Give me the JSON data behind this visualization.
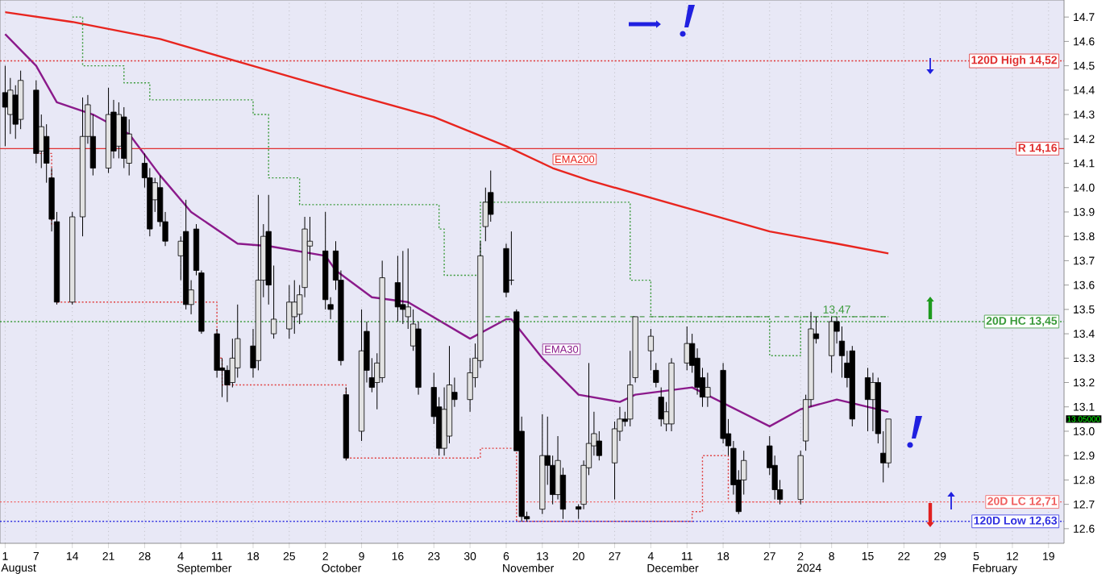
{
  "chart_data": {
    "type": "candlestick",
    "x": [
      "2023-08-01",
      "2023-08-02",
      "2023-08-03",
      "2023-08-04",
      "2023-08-07",
      "2023-08-08",
      "2023-08-09",
      "2023-08-10",
      "2023-08-11",
      "2023-08-14",
      "2023-08-16",
      "2023-08-17",
      "2023-08-18",
      "2023-08-21",
      "2023-08-22",
      "2023-08-23",
      "2023-08-24",
      "2023-08-25",
      "2023-08-28",
      "2023-08-29",
      "2023-08-30",
      "2023-08-31",
      "2023-09-01",
      "2023-09-04",
      "2023-09-05",
      "2023-09-06",
      "2023-09-07",
      "2023-09-08",
      "2023-09-11",
      "2023-09-12",
      "2023-09-13",
      "2023-09-14",
      "2023-09-15",
      "2023-09-18",
      "2023-09-19",
      "2023-09-20",
      "2023-09-21",
      "2023-09-22",
      "2023-09-25",
      "2023-09-26",
      "2023-09-27",
      "2023-09-28",
      "2023-09-29",
      "2023-10-02",
      "2023-10-03",
      "2023-10-04",
      "2023-10-05",
      "2023-10-06",
      "2023-10-09",
      "2023-10-10",
      "2023-10-11",
      "2023-10-12",
      "2023-10-13",
      "2023-10-16",
      "2023-10-17",
      "2023-10-18",
      "2023-10-19",
      "2023-10-20",
      "2023-10-23",
      "2023-10-24",
      "2023-10-25",
      "2023-10-26",
      "2023-10-27",
      "2023-10-30",
      "2023-10-31",
      "2023-11-01",
      "2023-11-02",
      "2023-11-03",
      "2023-11-06",
      "2023-11-07",
      "2023-11-08",
      "2023-11-09",
      "2023-11-10",
      "2023-11-13",
      "2023-11-14",
      "2023-11-15",
      "2023-11-16",
      "2023-11-17",
      "2023-11-20",
      "2023-11-21",
      "2023-11-22",
      "2023-11-23",
      "2023-11-24",
      "2023-11-27",
      "2023-11-28",
      "2023-11-29",
      "2023-11-30",
      "2023-12-01",
      "2023-12-04",
      "2023-12-05",
      "2023-12-06",
      "2023-12-07",
      "2023-12-08",
      "2023-12-11",
      "2023-12-12",
      "2023-12-13",
      "2023-12-14",
      "2023-12-15",
      "2023-12-18",
      "2023-12-19",
      "2023-12-20",
      "2023-12-21",
      "2023-12-22",
      "2023-12-27",
      "2023-12-28",
      "2023-12-29",
      "2024-01-02",
      "2024-01-03",
      "2024-01-04",
      "2024-01-05",
      "2024-01-08",
      "2024-01-09",
      "2024-01-10",
      "2024-01-11",
      "2024-01-12",
      "2024-01-15",
      "2024-01-16",
      "2024-01-17",
      "2024-01-18",
      "2024-01-19"
    ],
    "ohlc": [
      [
        14.39,
        14.5,
        14.17,
        14.33
      ],
      [
        14.3,
        14.45,
        14.22,
        14.4
      ],
      [
        14.38,
        14.42,
        14.2,
        14.26
      ],
      [
        14.28,
        14.48,
        14.24,
        14.44
      ],
      [
        14.4,
        14.44,
        14.1,
        14.14
      ],
      [
        14.15,
        14.3,
        14.08,
        14.25
      ],
      [
        14.21,
        14.26,
        14.02,
        14.1
      ],
      [
        14.04,
        14.08,
        13.82,
        13.87
      ],
      [
        13.86,
        13.9,
        13.52,
        13.53
      ],
      [
        13.53,
        13.9,
        13.52,
        13.88
      ],
      [
        13.88,
        14.37,
        13.8,
        14.21
      ],
      [
        14.21,
        14.38,
        14.18,
        14.34
      ],
      [
        14.21,
        14.3,
        14.05,
        14.08
      ],
      [
        14.08,
        14.41,
        14.06,
        14.3
      ],
      [
        14.31,
        14.36,
        14.12,
        14.15
      ],
      [
        14.17,
        14.35,
        14.12,
        14.3
      ],
      [
        14.29,
        14.33,
        14.08,
        14.12
      ],
      [
        14.1,
        14.28,
        14.05,
        14.22
      ],
      [
        14.1,
        14.14,
        14.0,
        14.04
      ],
      [
        14.04,
        14.08,
        13.8,
        13.83
      ],
      [
        13.95,
        14.04,
        13.9,
        14.02
      ],
      [
        14.0,
        14.05,
        13.84,
        13.86
      ],
      [
        13.86,
        13.9,
        13.76,
        13.78
      ],
      [
        13.72,
        13.8,
        13.62,
        13.78
      ],
      [
        13.82,
        13.95,
        13.5,
        13.52
      ],
      [
        13.52,
        13.62,
        13.48,
        13.58
      ],
      [
        13.83,
        13.85,
        13.64,
        13.66
      ],
      [
        13.65,
        13.66,
        13.4,
        13.41
      ],
      [
        13.4,
        13.42,
        13.22,
        13.25
      ],
      [
        13.26,
        13.3,
        13.14,
        13.25
      ],
      [
        13.25,
        13.27,
        13.12,
        13.19
      ],
      [
        13.2,
        13.38,
        13.18,
        13.3
      ],
      [
        13.26,
        13.52,
        13.22,
        13.38
      ],
      [
        13.35,
        13.42,
        13.22,
        13.26
      ],
      [
        13.29,
        13.97,
        13.25,
        13.62
      ],
      [
        13.62,
        13.85,
        13.55,
        13.8
      ],
      [
        13.82,
        13.97,
        13.52,
        13.6
      ],
      [
        13.4,
        13.68,
        13.38,
        13.46
      ],
      [
        13.42,
        13.6,
        13.38,
        13.53
      ],
      [
        13.47,
        13.62,
        13.4,
        13.53
      ],
      [
        13.48,
        13.6,
        13.44,
        13.56
      ],
      [
        13.59,
        13.88,
        13.55,
        13.83
      ],
      [
        13.76,
        13.88,
        13.7,
        13.78
      ],
      [
        13.74,
        13.9,
        13.5,
        13.54
      ],
      [
        13.52,
        13.55,
        13.46,
        13.5
      ],
      [
        13.74,
        13.78,
        13.58,
        13.62
      ],
      [
        13.62,
        13.66,
        13.27,
        13.29
      ],
      [
        13.15,
        13.18,
        12.88,
        12.89
      ],
      [
        13.0,
        13.5,
        12.96,
        13.33
      ],
      [
        13.41,
        13.45,
        13.2,
        13.25
      ],
      [
        13.22,
        13.3,
        13.16,
        13.18
      ],
      [
        13.2,
        13.32,
        13.09,
        13.28
      ],
      [
        13.22,
        13.7,
        13.2,
        13.63
      ],
      [
        13.61,
        13.72,
        13.45,
        13.51
      ],
      [
        13.52,
        13.74,
        13.44,
        13.5
      ],
      [
        13.47,
        13.75,
        13.42,
        13.51
      ],
      [
        13.35,
        13.5,
        13.33,
        13.44
      ],
      [
        13.42,
        13.45,
        13.15,
        13.18
      ],
      [
        13.18,
        13.24,
        13.03,
        13.06
      ],
      [
        13.1,
        13.14,
        12.9,
        12.93
      ],
      [
        12.93,
        13.18,
        12.9,
        13.09
      ],
      [
        12.98,
        13.35,
        12.95,
        13.19
      ],
      [
        13.16,
        13.22,
        13.1,
        13.13
      ],
      [
        13.13,
        13.3,
        13.08,
        13.24
      ],
      [
        13.22,
        13.36,
        13.18,
        13.3
      ],
      [
        13.29,
        13.78,
        13.26,
        13.72
      ],
      [
        13.84,
        14.0,
        13.78,
        13.94
      ],
      [
        13.98,
        14.07,
        13.86,
        13.89
      ],
      [
        13.75,
        13.77,
        13.55,
        13.57
      ],
      [
        13.62,
        13.82,
        13.6,
        13.62
      ],
      [
        13.49,
        13.5,
        12.92,
        12.92
      ],
      [
        13.0,
        13.06,
        12.63,
        12.65
      ],
      [
        12.65,
        12.67,
        12.63,
        12.64
      ],
      [
        12.68,
        13.07,
        12.66,
        12.9
      ],
      [
        12.9,
        13.06,
        12.78,
        12.86
      ],
      [
        12.86,
        12.9,
        12.7,
        12.74
      ],
      [
        12.74,
        12.98,
        12.72,
        12.88
      ],
      [
        12.82,
        12.85,
        12.64,
        12.68
      ],
      [
        12.69,
        12.7,
        12.64,
        12.68
      ],
      [
        12.7,
        12.88,
        12.68,
        12.86
      ],
      [
        12.85,
        13.28,
        12.82,
        12.95
      ],
      [
        12.94,
        13.08,
        12.9,
        12.99
      ],
      [
        12.96,
        13.0,
        12.88,
        12.9
      ],
      [
        12.87,
        13.04,
        12.72,
        13.01
      ],
      [
        13.0,
        13.1,
        12.96,
        13.05
      ],
      [
        13.05,
        13.08,
        13.02,
        13.04
      ],
      [
        13.05,
        13.33,
        13.02,
        13.19
      ],
      [
        13.22,
        13.47,
        13.2,
        13.47
      ],
      [
        13.33,
        13.42,
        13.25,
        13.39
      ],
      [
        13.25,
        13.28,
        13.18,
        13.2
      ],
      [
        13.14,
        13.18,
        13.02,
        13.05
      ],
      [
        13.03,
        13.12,
        13.0,
        13.08
      ],
      [
        13.03,
        13.3,
        13.0,
        13.28
      ],
      [
        13.28,
        13.43,
        13.25,
        13.36
      ],
      [
        13.36,
        13.4,
        13.24,
        13.27
      ],
      [
        13.3,
        13.34,
        13.15,
        13.18
      ],
      [
        13.22,
        13.26,
        13.1,
        13.14
      ],
      [
        13.14,
        13.24,
        13.1,
        13.18
      ],
      [
        13.25,
        13.28,
        12.95,
        12.97
      ],
      [
        12.99,
        13.05,
        12.9,
        12.94
      ],
      [
        12.93,
        12.96,
        12.74,
        12.78
      ],
      [
        12.8,
        12.84,
        12.66,
        12.67
      ],
      [
        12.8,
        12.92,
        12.74,
        12.88
      ],
      [
        12.94,
        12.98,
        12.82,
        12.85
      ],
      [
        12.86,
        12.9,
        12.72,
        12.76
      ],
      [
        12.76,
        12.8,
        12.7,
        12.72
      ],
      [
        12.72,
        12.92,
        12.7,
        12.9
      ],
      [
        12.96,
        13.15,
        12.92,
        13.13
      ],
      [
        13.13,
        13.49,
        13.1,
        13.42
      ],
      [
        13.4,
        13.47,
        13.36,
        13.38
      ],
      [
        13.31,
        13.47,
        13.24,
        13.45
      ],
      [
        13.45,
        13.47,
        13.36,
        13.41
      ],
      [
        13.37,
        13.43,
        13.22,
        13.31
      ],
      [
        13.28,
        13.33,
        13.18,
        13.22
      ],
      [
        13.33,
        13.35,
        13.02,
        13.05
      ],
      [
        13.22,
        13.26,
        13.0,
        13.13
      ],
      [
        13.13,
        13.24,
        13.0,
        13.2
      ],
      [
        13.2,
        13.22,
        12.95,
        12.99
      ],
      [
        12.91,
        13.0,
        12.79,
        12.87
      ],
      [
        12.87,
        13.05,
        12.85,
        13.05
      ]
    ],
    "series": [
      {
        "type": "line",
        "name": "EMA200",
        "color": "#e8251f",
        "line_style": "solid",
        "x": [
          "2023-08-01",
          "2023-08-14",
          "2023-08-31",
          "2023-09-26",
          "2023-10-06",
          "2023-10-23",
          "2023-11-06",
          "2023-11-15",
          "2023-11-22",
          "2023-12-12",
          "2023-12-27",
          "2024-01-09",
          "2024-01-19"
        ],
        "values": [
          14.72,
          14.68,
          14.61,
          14.45,
          14.39,
          14.29,
          14.17,
          14.08,
          14.03,
          13.91,
          13.82,
          13.77,
          13.73
        ]
      },
      {
        "type": "line",
        "name": "EMA30",
        "color": "#8b1a8b",
        "line_style": "solid",
        "x": [
          "2023-08-01",
          "2023-08-07",
          "2023-08-11",
          "2023-08-18",
          "2023-08-25",
          "2023-08-31",
          "2023-09-06",
          "2023-09-15",
          "2023-09-21",
          "2023-10-02",
          "2023-10-04",
          "2023-10-11",
          "2023-10-18",
          "2023-10-30",
          "2023-11-06",
          "2023-11-07",
          "2023-11-13",
          "2023-11-20",
          "2023-11-28",
          "2023-12-01",
          "2023-12-12",
          "2023-12-27",
          "2024-01-02",
          "2024-01-09",
          "2024-01-11",
          "2024-01-19"
        ],
        "values": [
          14.63,
          14.5,
          14.35,
          14.3,
          14.22,
          14.05,
          13.9,
          13.77,
          13.76,
          13.72,
          13.66,
          13.55,
          13.53,
          13.38,
          13.46,
          13.46,
          13.3,
          13.15,
          13.12,
          13.15,
          13.18,
          13.02,
          13.09,
          13.13,
          13.12,
          13.08
        ]
      },
      {
        "type": "step",
        "color": "#3a9a3a",
        "line_style": "dotted",
        "x": [
          "2023-08-14",
          "2023-08-16",
          "2023-08-24",
          "2023-08-29",
          "2023-09-18",
          "2023-09-21",
          "2023-09-27",
          "2023-10-24",
          "2023-10-25",
          "2023-11-01",
          "2023-11-30",
          "2023-12-04",
          "2023-12-27",
          "2024-01-02",
          "2024-01-19"
        ],
        "values": [
          14.7,
          14.5,
          14.43,
          14.36,
          14.3,
          14.04,
          13.93,
          13.83,
          13.64,
          13.94,
          13.62,
          13.47,
          13.31,
          13.47,
          13.47
        ]
      },
      {
        "type": "step",
        "color": "#e04040",
        "line_style": "dotted",
        "x": [
          "2023-08-07",
          "2023-08-10",
          "2023-08-11",
          "2023-09-11",
          "2023-09-12",
          "2023-10-06",
          "2023-11-01",
          "2023-11-08",
          "2023-12-12",
          "2023-12-14",
          "2023-12-19",
          "2024-01-19"
        ],
        "values": [
          14.14,
          13.85,
          13.53,
          13.3,
          13.19,
          12.89,
          12.93,
          12.63,
          12.67,
          12.9,
          12.71,
          12.71
        ]
      },
      {
        "type": "line",
        "color": "#4f9a4f",
        "line_style": "dashed",
        "x": [
          "2023-11-02",
          "2024-01-19"
        ],
        "values": [
          13.47,
          13.47
        ]
      }
    ],
    "ref_lines": [
      {
        "axis": "y",
        "value": 14.52,
        "label": "120D High 14,52",
        "color": "#e03030",
        "line_style": "dotted"
      },
      {
        "axis": "y",
        "value": 14.16,
        "label": "R 14,16",
        "color": "#e03030",
        "line_style": "solid"
      },
      {
        "axis": "y",
        "value": 13.45,
        "label": "20D HC 13,45",
        "color": "#3a9a3a",
        "line_style": "dotted"
      },
      {
        "axis": "y",
        "value": 12.71,
        "label": "20D LC 12,71",
        "color": "#f06060",
        "line_style": "dotted"
      },
      {
        "axis": "y",
        "value": 12.63,
        "label": "120D Low 12,63",
        "color": "#3030e0",
        "line_style": "dotted"
      }
    ],
    "annotations": [
      {
        "text": "13,47",
        "x": "2024-01-09",
        "y": 13.47
      },
      "13.05000",
      "August",
      "September",
      "October",
      "November",
      "December",
      "2024",
      "February"
    ],
    "xlim": [
      "2023-07-31",
      "2024-02-22"
    ],
    "ylim": [
      12.54,
      14.77
    ],
    "xticks": [
      {
        "value": "2023-08-01",
        "label": "1"
      },
      {
        "value": "2023-08-07",
        "label": "7"
      },
      {
        "value": "2023-08-14",
        "label": "14"
      },
      {
        "value": "2023-08-21",
        "label": "21"
      },
      {
        "value": "2023-08-28",
        "label": "28"
      },
      {
        "value": "2023-09-04",
        "label": "4"
      },
      {
        "value": "2023-09-11",
        "label": "11"
      },
      {
        "value": "2023-09-18",
        "label": "18"
      },
      {
        "value": "2023-09-25",
        "label": "25"
      },
      {
        "value": "2023-10-02",
        "label": "2"
      },
      {
        "value": "2023-10-09",
        "label": "9"
      },
      {
        "value": "2023-10-16",
        "label": "16"
      },
      {
        "value": "2023-10-23",
        "label": "23"
      },
      {
        "value": "2023-10-30",
        "label": "30"
      },
      {
        "value": "2023-11-06",
        "label": "6"
      },
      {
        "value": "2023-11-13",
        "label": "13"
      },
      {
        "value": "2023-11-20",
        "label": "20"
      },
      {
        "value": "2023-11-27",
        "label": "27"
      },
      {
        "value": "2023-12-04",
        "label": "4"
      },
      {
        "value": "2023-12-11",
        "label": "11"
      },
      {
        "value": "2023-12-18",
        "label": "18"
      },
      {
        "value": "2023-12-27",
        "label": "27"
      },
      {
        "value": "2024-01-02",
        "label": "2"
      },
      {
        "value": "2024-01-08",
        "label": "8"
      },
      {
        "value": "2024-01-15",
        "label": "15"
      },
      {
        "value": "2024-01-22",
        "label": "22"
      },
      {
        "value": "2024-01-29",
        "label": "29"
      },
      {
        "value": "2024-02-05",
        "label": "5"
      },
      {
        "value": "2024-02-12",
        "label": "12"
      },
      {
        "value": "2024-02-19",
        "label": "19"
      }
    ],
    "yticks": [
      12.6,
      12.7,
      12.8,
      12.9,
      {
        "value": 13.0,
        "label": "13.0"
      },
      13.1,
      13.2,
      13.3,
      13.4,
      13.5,
      13.6,
      13.7,
      13.8,
      13.9,
      {
        "value": 14.0,
        "label": "14.0"
      },
      14.1,
      14.2,
      14.3,
      14.4,
      14.5,
      14.6,
      14.7
    ],
    "grid": "x"
  }
}
